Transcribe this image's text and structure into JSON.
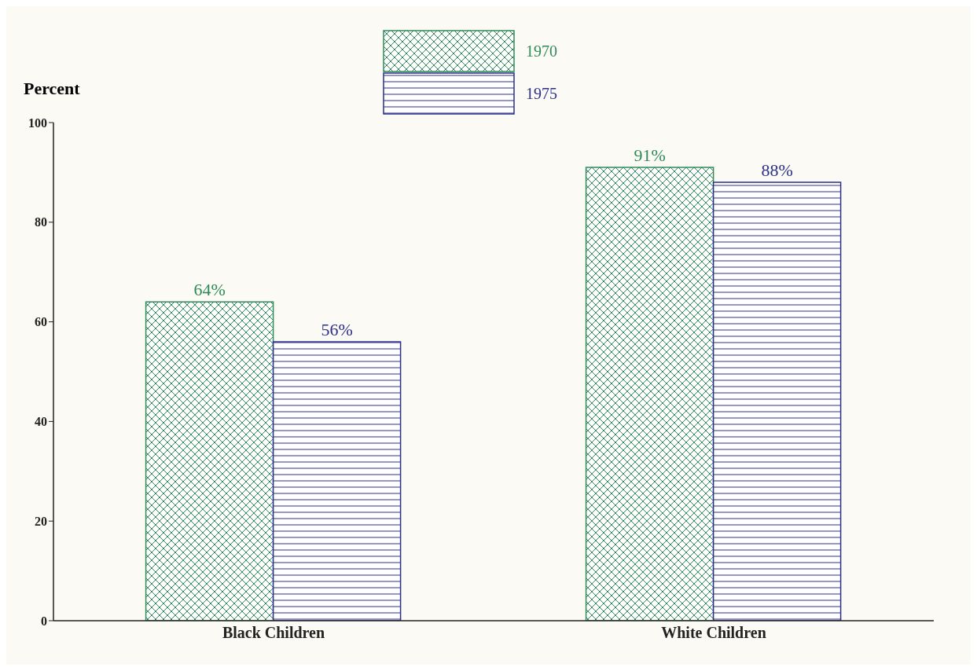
{
  "chart_data": {
    "type": "bar",
    "ylabel": "Percent",
    "categories": [
      "Black Children",
      "White Children"
    ],
    "series": [
      {
        "name": "1970",
        "color": "#2e8b57",
        "values": [
          64,
          91
        ],
        "value_labels": [
          "64%",
          "91%"
        ]
      },
      {
        "name": "1975",
        "color": "#2b2f8a",
        "values": [
          56,
          88
        ],
        "value_labels": [
          "56%",
          "88%"
        ]
      }
    ],
    "ylim": [
      0,
      100
    ],
    "yticks": [
      0,
      20,
      40,
      60,
      80,
      100
    ],
    "grid": false,
    "legend": "top"
  }
}
